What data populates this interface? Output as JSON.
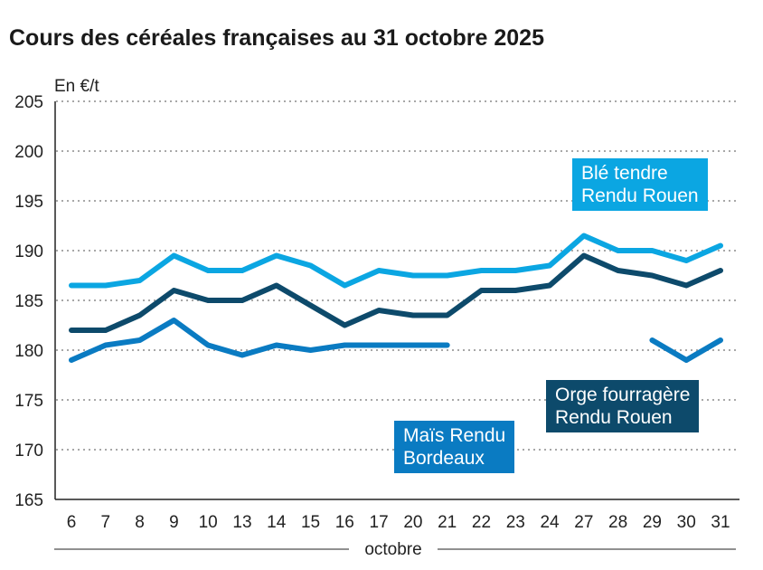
{
  "chart_data": {
    "type": "line",
    "title": "Cours des céréales françaises au 31 octobre 2025",
    "ylabel": "En €/t",
    "xlabel": "octobre",
    "ylim": [
      165,
      205
    ],
    "yticks": [
      165,
      170,
      175,
      180,
      185,
      190,
      195,
      200,
      205
    ],
    "grid": true,
    "categories": [
      "6",
      "7",
      "8",
      "9",
      "10",
      "13",
      "14",
      "15",
      "16",
      "17",
      "20",
      "21",
      "22",
      "23",
      "24",
      "27",
      "28",
      "29",
      "30",
      "31"
    ],
    "series": [
      {
        "name": "Blé tendre Rendu Rouen",
        "label_lines": [
          "Blé tendre",
          "Rendu Rouen"
        ],
        "color": "#0ba6e2",
        "values": [
          186.5,
          186.5,
          187,
          189.5,
          188,
          188,
          189.5,
          188.5,
          186.5,
          188,
          187.5,
          187.5,
          188,
          188,
          188.5,
          191.5,
          190,
          190,
          189,
          190.5
        ]
      },
      {
        "name": "Orge fourragère Rendu Rouen",
        "label_lines": [
          "Orge fourragère",
          "Rendu Rouen"
        ],
        "color": "#0d4a6b",
        "values": [
          182,
          182,
          183.5,
          186,
          185,
          185,
          186.5,
          184.5,
          182.5,
          184,
          183.5,
          183.5,
          186,
          186,
          186.5,
          189.5,
          188,
          187.5,
          186.5,
          188
        ]
      },
      {
        "name": "Maïs Rendu Bordeaux",
        "label_lines": [
          "Maïs Rendu",
          "Bordeaux"
        ],
        "color": "#0a7bc2",
        "values": [
          179,
          180.5,
          181,
          183,
          180.5,
          179.5,
          180.5,
          180,
          180.5,
          180.5,
          180.5,
          180.5,
          null,
          null,
          null,
          null,
          null,
          181,
          179,
          181
        ]
      }
    ]
  }
}
